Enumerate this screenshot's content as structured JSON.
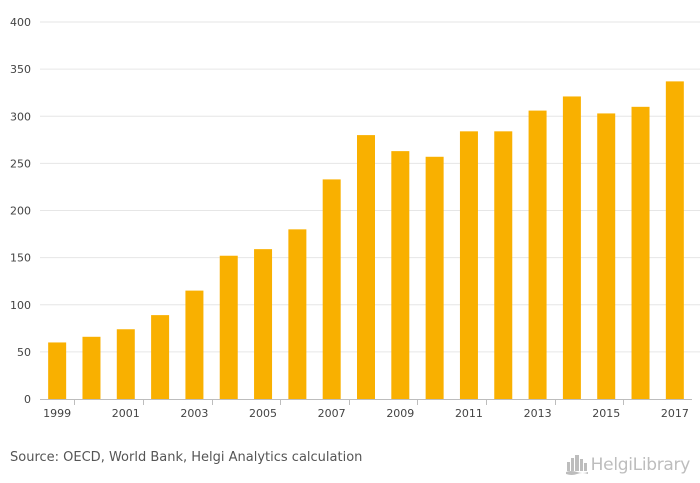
{
  "chart_data": {
    "type": "bar",
    "categories": [
      "1999",
      "2000",
      "2001",
      "2002",
      "2003",
      "2004",
      "2005",
      "2006",
      "2007",
      "2008",
      "2009",
      "2010",
      "2011",
      "2012",
      "2013",
      "2014",
      "2015",
      "2016",
      "2017"
    ],
    "values": [
      60,
      66,
      74,
      89,
      115,
      152,
      159,
      180,
      233,
      280,
      263,
      257,
      284,
      284,
      306,
      321,
      303,
      310,
      337
    ],
    "x_tick_labels": [
      "1999",
      "2001",
      "2003",
      "2005",
      "2007",
      "2009",
      "2011",
      "2013",
      "2015",
      "2017"
    ],
    "y_ticks": [
      0,
      50,
      100,
      150,
      200,
      250,
      300,
      350,
      400
    ],
    "ylim": [
      0,
      400
    ],
    "title": "",
    "xlabel": "",
    "ylabel": "",
    "grid": true,
    "bar_color": "#f9b000"
  },
  "footer": {
    "source": "Source: OECD, World Bank, Helgi Analytics calculation",
    "logo_text": "HelgiLibrary",
    "logo_icon": "helgi-city-icon"
  },
  "colors": {
    "bar": "#f9b000",
    "grid": "#e6e6e6",
    "axis": "#bdbdbd",
    "text": "#444444",
    "logo": "#bdbdbd"
  }
}
